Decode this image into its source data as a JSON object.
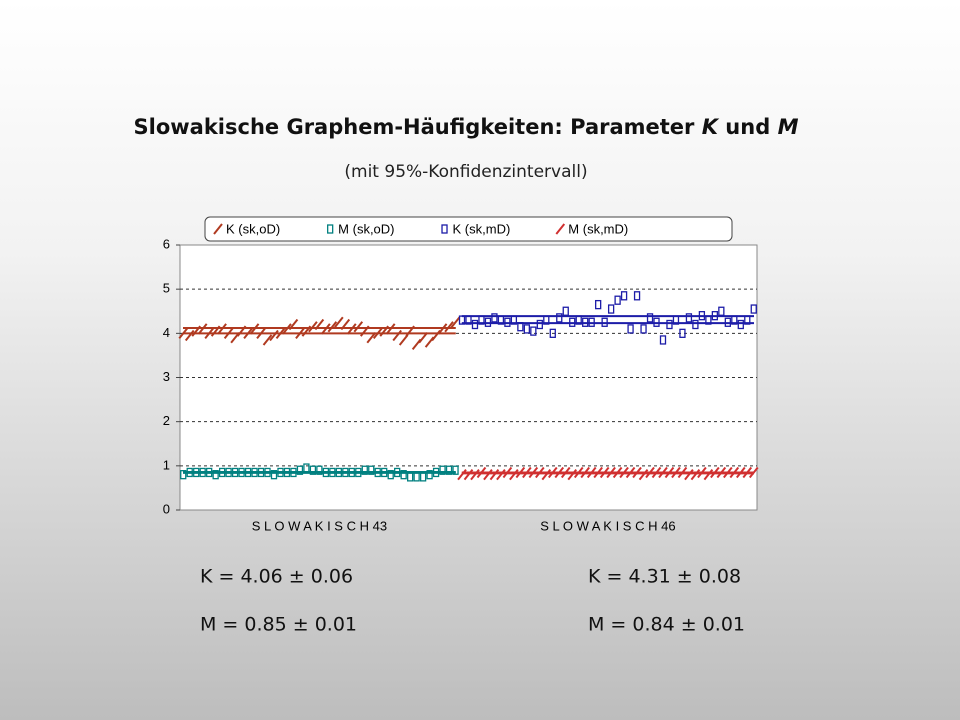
{
  "chart_data": {
    "type": "line",
    "title": [
      {
        "text": "Slowakische Graphem-Häufigkeiten: Parameter ",
        "italic": false
      },
      {
        "text": "K",
        "italic": true
      },
      {
        "text": " und ",
        "italic": false
      },
      {
        "text": "M",
        "italic": true
      }
    ],
    "subtitle": "(mit 95%-Konfidenzintervall)",
    "ylim": [
      0,
      6
    ],
    "yticks": [
      0,
      1,
      2,
      3,
      4,
      5,
      6
    ],
    "grid": true,
    "groups": [
      {
        "label": "S L O W A K I S C H   43",
        "size": 43,
        "stats": [
          {
            "value": 4.06,
            "error": 0.06,
            "label": "K = 4.06 ± 0.06",
            "color": "#b03a20"
          },
          {
            "value": 0.85,
            "error": 0.01,
            "label": "M = 0.85 ± 0.01",
            "color": "#008080"
          }
        ]
      },
      {
        "label": "S L O W A K I S C H   46",
        "size": 46,
        "stats": [
          {
            "value": 4.31,
            "error": 0.08,
            "label": "K = 4.31 ± 0.08",
            "color": "#1c1ca8"
          },
          {
            "value": 0.84,
            "error": 0.01,
            "label": "M = 0.84 ± 0.01",
            "color": "#d03030"
          }
        ]
      }
    ],
    "series": [
      {
        "name": "K (sk,oD)",
        "color": "#b03a20",
        "marker": "slash",
        "group": 0,
        "values": [
          4.0,
          3.95,
          4.05,
          4.1,
          4.0,
          4.05,
          4.1,
          4.0,
          3.9,
          4.05,
          4.0,
          4.1,
          4.0,
          3.85,
          3.95,
          4.0,
          4.1,
          4.2,
          4.0,
          4.05,
          4.15,
          4.2,
          4.1,
          4.15,
          4.25,
          4.2,
          4.1,
          4.15,
          4.05,
          3.9,
          4.0,
          4.05,
          4.1,
          3.95,
          3.85,
          4.05,
          3.75,
          3.9,
          3.8,
          3.95,
          4.1,
          4.15,
          4.25
        ]
      },
      {
        "name": "M (sk,oD)",
        "color": "#008080",
        "marker": "box",
        "group": 0,
        "values": [
          0.8,
          0.85,
          0.85,
          0.85,
          0.85,
          0.8,
          0.85,
          0.85,
          0.85,
          0.85,
          0.85,
          0.85,
          0.85,
          0.85,
          0.8,
          0.85,
          0.85,
          0.85,
          0.9,
          0.95,
          0.9,
          0.9,
          0.85,
          0.85,
          0.85,
          0.85,
          0.85,
          0.85,
          0.9,
          0.9,
          0.85,
          0.85,
          0.8,
          0.85,
          0.8,
          0.75,
          0.75,
          0.75,
          0.8,
          0.85,
          0.9,
          0.9,
          0.9
        ]
      },
      {
        "name": "K (sk,mD)",
        "color": "#1c1ca8",
        "marker": "box",
        "group": 1,
        "values": [
          4.3,
          4.3,
          4.2,
          4.3,
          4.25,
          4.35,
          4.3,
          4.25,
          4.3,
          4.15,
          4.1,
          4.05,
          4.2,
          4.3,
          4.0,
          4.35,
          4.5,
          4.25,
          4.3,
          4.25,
          4.25,
          4.65,
          4.25,
          4.55,
          4.75,
          4.85,
          4.1,
          4.85,
          4.1,
          4.35,
          4.25,
          3.85,
          4.2,
          4.3,
          4.0,
          4.35,
          4.2,
          4.4,
          4.3,
          4.4,
          4.5,
          4.25,
          4.3,
          4.2,
          4.3,
          4.55
        ]
      },
      {
        "name": "M (sk,mD)",
        "color": "#d03030",
        "marker": "slash",
        "group": 1,
        "values": [
          0.8,
          0.8,
          0.8,
          0.85,
          0.8,
          0.8,
          0.8,
          0.85,
          0.8,
          0.85,
          0.85,
          0.85,
          0.85,
          0.8,
          0.85,
          0.85,
          0.85,
          0.8,
          0.85,
          0.85,
          0.85,
          0.85,
          0.85,
          0.85,
          0.85,
          0.85,
          0.85,
          0.85,
          0.8,
          0.85,
          0.85,
          0.85,
          0.85,
          0.85,
          0.85,
          0.8,
          0.8,
          0.85,
          0.8,
          0.85,
          0.85,
          0.85,
          0.85,
          0.85,
          0.85,
          0.85
        ]
      }
    ]
  }
}
